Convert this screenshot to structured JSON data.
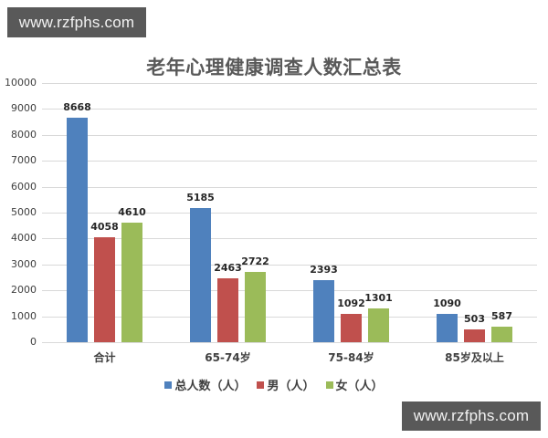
{
  "watermarks": {
    "top": "www.rzfphs.com",
    "bottom": "www.rzfphs.com"
  },
  "colors": {
    "total": "#4f81bd",
    "male": "#c0504d",
    "female": "#9bbb59",
    "grid": "#d9d9d9"
  },
  "chart_data": {
    "type": "bar",
    "title": "老年心理健康调查人数汇总表",
    "xlabel": "",
    "ylabel": "",
    "ylim": [
      0,
      10000
    ],
    "yticks": [
      0,
      1000,
      2000,
      3000,
      4000,
      5000,
      6000,
      7000,
      8000,
      9000,
      10000
    ],
    "grid": true,
    "legend_position": "bottom",
    "categories": [
      "合计",
      "65-74岁",
      "75-84岁",
      "85岁及以上"
    ],
    "series": [
      {
        "name": "总人数（人）",
        "values": [
          8668,
          5185,
          2393,
          1090
        ]
      },
      {
        "name": "男（人）",
        "values": [
          4058,
          2463,
          1092,
          503
        ]
      },
      {
        "name": "女（人）",
        "values": [
          4610,
          2722,
          1301,
          587
        ]
      }
    ]
  }
}
